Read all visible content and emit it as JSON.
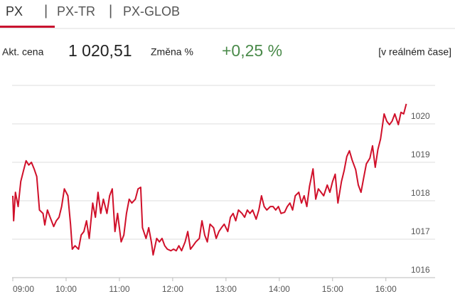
{
  "tabs": [
    {
      "label": "PX",
      "selected": true
    },
    {
      "label": "PX-TR",
      "selected": false
    },
    {
      "label": "PX-GLOB",
      "selected": false
    }
  ],
  "quote": {
    "price_label": "Akt. cena",
    "price": "1 020,51",
    "change_label": "Změna %",
    "change": "+0,25 %",
    "status": "[v reálném čase]"
  },
  "chart_data": {
    "type": "line",
    "color": "#d0102a",
    "grid": true,
    "y_axis_side": "right",
    "x": [
      540,
      541,
      543,
      546,
      549,
      552,
      555,
      558,
      561,
      564,
      567,
      570,
      574,
      576,
      579,
      582,
      586,
      589,
      592,
      595,
      598,
      602,
      605,
      607,
      610,
      614,
      617,
      620,
      623,
      626,
      630,
      633,
      636,
      639,
      642,
      646,
      649,
      652,
      655,
      658,
      662,
      665,
      668,
      671,
      674,
      678,
      681,
      684,
      686,
      690,
      693,
      696,
      698,
      702,
      705,
      708,
      711,
      714,
      718,
      721,
      724,
      727,
      730,
      734,
      737,
      740,
      743,
      746,
      750,
      753,
      756,
      759,
      762,
      766,
      769,
      772,
      775,
      778,
      782,
      785,
      788,
      791,
      794,
      798,
      801,
      804,
      807,
      810,
      814,
      817,
      820,
      823,
      826,
      830,
      833,
      836,
      839,
      842,
      846,
      849,
      852,
      855,
      858,
      862,
      865,
      868,
      871,
      874,
      878,
      881,
      884,
      887,
      890,
      894,
      897,
      900,
      903,
      906,
      910,
      913,
      916,
      919,
      922,
      926,
      929,
      932,
      935,
      938,
      942,
      945,
      948,
      951,
      954,
      958,
      961,
      964,
      967,
      970,
      974,
      977,
      980,
      983
    ],
    "values": [
      1018.13,
      1017.48,
      1018.22,
      1017.85,
      1018.5,
      1018.78,
      1019.04,
      1018.93,
      1019.0,
      1018.83,
      1018.63,
      1017.76,
      1017.67,
      1017.37,
      1017.76,
      1017.57,
      1017.33,
      1017.48,
      1017.57,
      1017.85,
      1018.31,
      1018.13,
      1017.39,
      1016.74,
      1016.83,
      1016.74,
      1017.11,
      1017.2,
      1017.48,
      1017.02,
      1017.94,
      1017.57,
      1018.22,
      1017.67,
      1018.04,
      1017.67,
      1018.13,
      1018.31,
      1017.2,
      1017.67,
      1016.93,
      1017.11,
      1017.67,
      1018.04,
      1017.94,
      1018.04,
      1018.31,
      1018.35,
      1017.3,
      1017.02,
      1017.3,
      1016.93,
      1016.59,
      1017.02,
      1016.93,
      1017.02,
      1016.83,
      1016.74,
      1016.7,
      1016.74,
      1016.7,
      1016.83,
      1016.7,
      1016.93,
      1017.2,
      1016.74,
      1016.83,
      1016.93,
      1017.02,
      1017.48,
      1017.11,
      1016.93,
      1017.39,
      1017.3,
      1017.02,
      1017.2,
      1017.3,
      1017.39,
      1017.2,
      1017.57,
      1017.67,
      1017.48,
      1017.76,
      1017.67,
      1017.57,
      1017.76,
      1017.67,
      1017.76,
      1017.52,
      1017.76,
      1018.13,
      1017.85,
      1017.76,
      1017.85,
      1017.85,
      1017.76,
      1017.85,
      1017.67,
      1017.7,
      1017.85,
      1017.94,
      1017.76,
      1018.13,
      1018.22,
      1017.94,
      1018.13,
      1017.85,
      1018.37,
      1018.83,
      1018.04,
      1018.31,
      1018.22,
      1018.13,
      1018.41,
      1018.22,
      1018.5,
      1018.69,
      1017.94,
      1018.5,
      1018.78,
      1019.15,
      1019.3,
      1019.06,
      1018.81,
      1018.41,
      1018.22,
      1018.59,
      1018.96,
      1019.11,
      1019.43,
      1018.87,
      1019.33,
      1019.61,
      1020.26,
      1020.07,
      1019.98,
      1020.07,
      1020.26,
      1019.98,
      1020.3,
      1020.26,
      1020.52
    ],
    "xlim": [
      540,
      985
    ],
    "xticks": [
      {
        "value": 540,
        "label": "09:00"
      },
      {
        "value": 600,
        "label": "10:00"
      },
      {
        "value": 660,
        "label": "11:00"
      },
      {
        "value": 720,
        "label": "12:00"
      },
      {
        "value": 780,
        "label": "13:00"
      },
      {
        "value": 840,
        "label": "14:00"
      },
      {
        "value": 900,
        "label": "15:00"
      },
      {
        "value": 960,
        "label": "16:00"
      }
    ],
    "ylim": [
      1016,
      1021
    ],
    "yticks": [
      1016,
      1017,
      1018,
      1019,
      1020
    ]
  }
}
